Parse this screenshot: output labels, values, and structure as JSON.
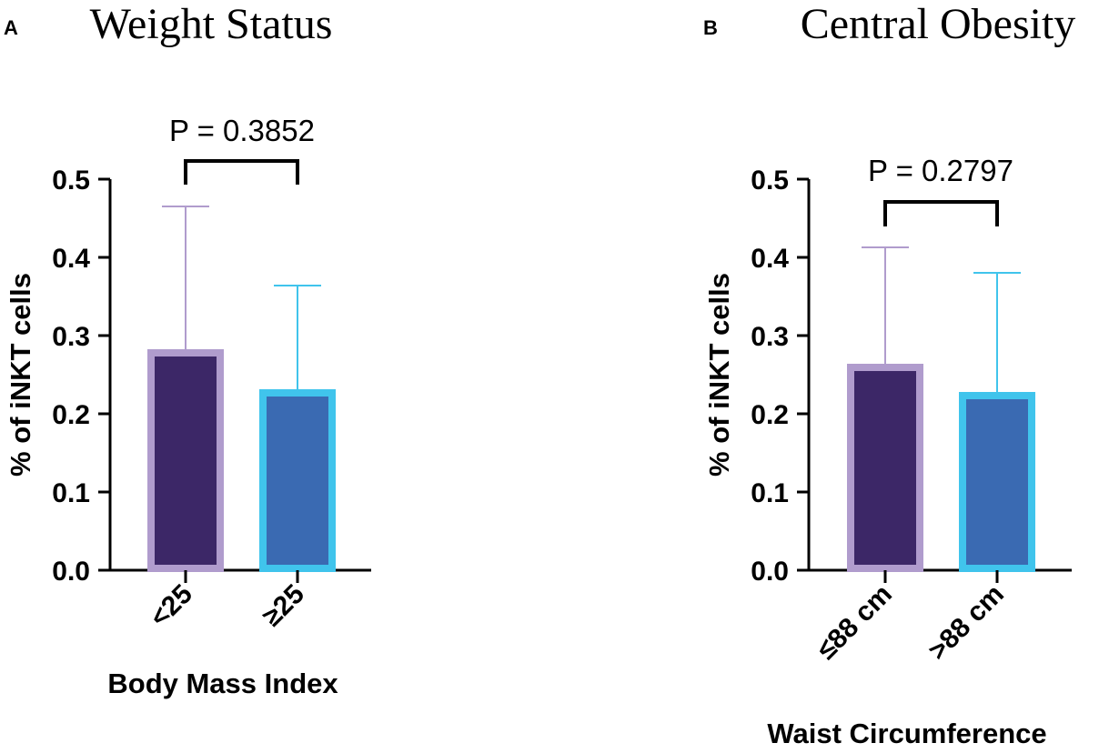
{
  "colors": {
    "axis": "#000000",
    "bar1_fill": "#3c2767",
    "bar1_edge": "#b09ccd",
    "bar2_fill": "#3a6ab2",
    "bar2_edge": "#40c4ec"
  },
  "chart_data": [
    {
      "type": "bar",
      "panel": "A",
      "title": "Weight Status",
      "xlabel": "Body Mass Index",
      "ylabel": "% of iNKT cells",
      "categories": [
        "<25",
        "≥25"
      ],
      "values": [
        0.28,
        0.23
      ],
      "error_upper": [
        0.465,
        0.364
      ],
      "ylim": [
        0,
        0.5
      ],
      "yticks": [
        "0.0",
        "0.1",
        "0.2",
        "0.3",
        "0.4",
        "0.5"
      ],
      "annotation": "P = 0.3852",
      "grid": false
    },
    {
      "type": "bar",
      "panel": "B",
      "title": "Central Obesity",
      "xlabel": "Waist Circumference",
      "ylabel": "% of iNKT cells",
      "categories": [
        "≤88 cm",
        ">88 cm"
      ],
      "values": [
        0.261,
        0.226
      ],
      "error_upper": [
        0.413,
        0.381
      ],
      "ylim": [
        0,
        0.5
      ],
      "yticks": [
        "0.0",
        "0.1",
        "0.2",
        "0.3",
        "0.4",
        "0.5"
      ],
      "annotation": "P = 0.2797",
      "grid": false
    }
  ]
}
